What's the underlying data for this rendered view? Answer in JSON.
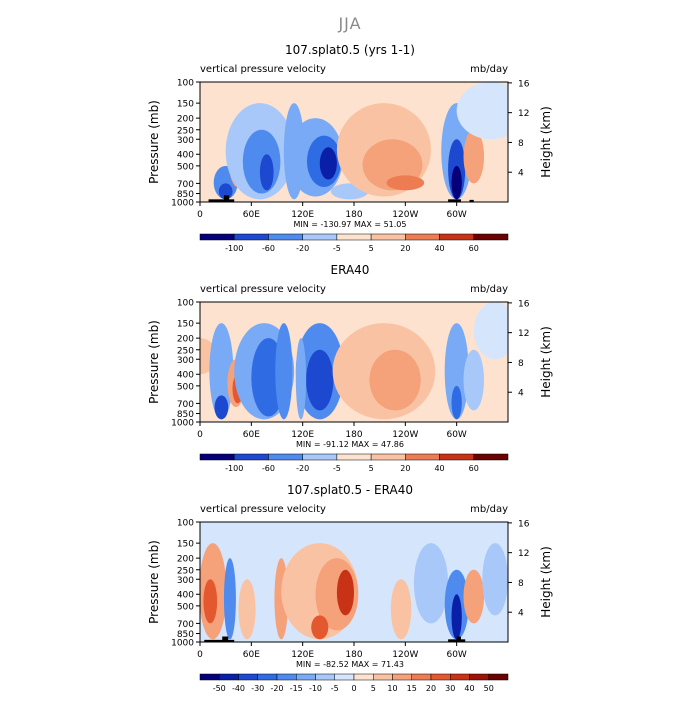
{
  "figure": {
    "season": "JJA"
  },
  "colors": {
    "m8": "#05007a",
    "m7": "#0a1fa8",
    "m6": "#1c49cf",
    "m5": "#2f6ce4",
    "m4": "#4f8bee",
    "m3": "#78aaf5",
    "m2": "#a7c8f9",
    "m1": "#d5e5fc",
    "p1": "#fde3cf",
    "p2": "#f9c3a3",
    "p3": "#f5a17a",
    "p4": "#ee7c52",
    "p5": "#e3582f",
    "p6": "#c83318",
    "p7": "#9c1408",
    "p8": "#6a0200",
    "land": "#000000"
  },
  "chart_data": [
    {
      "id": "panel-1",
      "type": "heatmap",
      "title": "107.splat0.5 (yrs 1-1)",
      "subtitle_left": "vertical pressure velocity",
      "subtitle_right": "mb/day",
      "ylabel": "Pressure (mb)",
      "ylabel_right": "Height (km)",
      "x_ticks": [
        "0",
        "60E",
        "120E",
        "180",
        "120W",
        "60W"
      ],
      "x_tick_values": [
        0,
        60,
        120,
        180,
        240,
        300
      ],
      "xlim": [
        0,
        360
      ],
      "y_ticks": [
        "100",
        "150",
        "200",
        "250",
        "300",
        "400",
        "500",
        "700",
        "850",
        "1000"
      ],
      "y_tick_values": [
        100,
        150,
        200,
        250,
        300,
        400,
        500,
        700,
        850,
        1000
      ],
      "ylim": [
        1000,
        100
      ],
      "height_ticks": [
        "16",
        "12",
        "8",
        "4"
      ],
      "height_tick_values": [
        16,
        12,
        8,
        4
      ],
      "minmax": "MIN = -130.97   MAX =  51.05",
      "colorbar_labels": [
        "-100",
        "-60",
        "-20",
        "-5",
        "5",
        "20",
        "40",
        "60"
      ],
      "bg": "p1",
      "blobs": [
        {
          "lon": 30,
          "lo": 500,
          "hi": 950,
          "w": 14,
          "c": "m4"
        },
        {
          "lon": 30,
          "lo": 700,
          "hi": 950,
          "w": 8,
          "c": "m6"
        },
        {
          "lon": 44,
          "lo": 300,
          "hi": 750,
          "w": 10,
          "c": "p3"
        },
        {
          "lon": 70,
          "lo": 150,
          "hi": 950,
          "w": 40,
          "c": "m2"
        },
        {
          "lon": 72,
          "lo": 250,
          "hi": 850,
          "w": 22,
          "c": "m4"
        },
        {
          "lon": 78,
          "lo": 400,
          "hi": 800,
          "w": 8,
          "c": "m6"
        },
        {
          "lon": 110,
          "lo": 150,
          "hi": 950,
          "w": 12,
          "c": "m3"
        },
        {
          "lon": 135,
          "lo": 200,
          "hi": 900,
          "w": 32,
          "c": "m3"
        },
        {
          "lon": 145,
          "lo": 280,
          "hi": 750,
          "w": 20,
          "c": "m5"
        },
        {
          "lon": 150,
          "lo": 350,
          "hi": 650,
          "w": 10,
          "c": "m7"
        },
        {
          "lon": 175,
          "lo": 700,
          "hi": 950,
          "w": 22,
          "c": "m2"
        },
        {
          "lon": 215,
          "lo": 150,
          "hi": 900,
          "w": 55,
          "c": "p2"
        },
        {
          "lon": 225,
          "lo": 300,
          "hi": 800,
          "w": 35,
          "c": "p3"
        },
        {
          "lon": 240,
          "lo": 600,
          "hi": 800,
          "w": 22,
          "c": "p4"
        },
        {
          "lon": 300,
          "lo": 150,
          "hi": 950,
          "w": 18,
          "c": "m3"
        },
        {
          "lon": 300,
          "lo": 300,
          "hi": 950,
          "w": 10,
          "c": "m6"
        },
        {
          "lon": 300,
          "lo": 500,
          "hi": 950,
          "w": 6,
          "c": "m8"
        },
        {
          "lon": 320,
          "lo": 250,
          "hi": 700,
          "w": 12,
          "c": "p3"
        },
        {
          "lon": 340,
          "lo": 100,
          "hi": 300,
          "w": 40,
          "c": "m1"
        }
      ],
      "land": [
        {
          "lon0": 10,
          "lon1": 40,
          "p0": 950,
          "p1": 1000
        },
        {
          "lon0": 28,
          "lon1": 34,
          "p0": 880,
          "p1": 1000
        },
        {
          "lon0": 290,
          "lon1": 305,
          "p0": 950,
          "p1": 1000
        },
        {
          "lon0": 315,
          "lon1": 320,
          "p0": 960,
          "p1": 1000
        }
      ]
    },
    {
      "id": "panel-2",
      "type": "heatmap",
      "title": "ERA40",
      "subtitle_left": "vertical pressure velocity",
      "subtitle_right": "mb/day",
      "ylabel": "Pressure (mb)",
      "ylabel_right": "Height (km)",
      "x_ticks": [
        "0",
        "60E",
        "120E",
        "180",
        "120W",
        "60W"
      ],
      "x_tick_values": [
        0,
        60,
        120,
        180,
        240,
        300
      ],
      "xlim": [
        0,
        360
      ],
      "y_ticks": [
        "100",
        "150",
        "200",
        "250",
        "300",
        "400",
        "500",
        "700",
        "850",
        "1000"
      ],
      "y_tick_values": [
        100,
        150,
        200,
        250,
        300,
        400,
        500,
        700,
        850,
        1000
      ],
      "ylim": [
        1000,
        100
      ],
      "height_ticks": [
        "16",
        "12",
        "8",
        "4"
      ],
      "height_tick_values": [
        16,
        12,
        8,
        4
      ],
      "minmax": "MIN = -91.12   MAX =  47.86",
      "colorbar_labels": [
        "-100",
        "-60",
        "-20",
        "-5",
        "5",
        "20",
        "40",
        "60"
      ],
      "bg": "p1",
      "blobs": [
        {
          "lon": 0,
          "lo": 200,
          "hi": 400,
          "w": 20,
          "c": "p2"
        },
        {
          "lon": 25,
          "lo": 150,
          "hi": 950,
          "w": 14,
          "c": "m3"
        },
        {
          "lon": 25,
          "lo": 600,
          "hi": 950,
          "w": 8,
          "c": "m6"
        },
        {
          "lon": 42,
          "lo": 300,
          "hi": 750,
          "w": 10,
          "c": "p3"
        },
        {
          "lon": 44,
          "lo": 400,
          "hi": 700,
          "w": 6,
          "c": "p5"
        },
        {
          "lon": 75,
          "lo": 150,
          "hi": 950,
          "w": 35,
          "c": "m3"
        },
        {
          "lon": 80,
          "lo": 200,
          "hi": 900,
          "w": 20,
          "c": "m5"
        },
        {
          "lon": 98,
          "lo": 150,
          "hi": 950,
          "w": 10,
          "c": "m4"
        },
        {
          "lon": 140,
          "lo": 150,
          "hi": 950,
          "w": 28,
          "c": "m4"
        },
        {
          "lon": 140,
          "lo": 250,
          "hi": 800,
          "w": 16,
          "c": "m6"
        },
        {
          "lon": 118,
          "lo": 200,
          "hi": 950,
          "w": 6,
          "c": "m3"
        },
        {
          "lon": 215,
          "lo": 150,
          "hi": 950,
          "w": 60,
          "c": "p2"
        },
        {
          "lon": 228,
          "lo": 250,
          "hi": 800,
          "w": 30,
          "c": "p3"
        },
        {
          "lon": 300,
          "lo": 150,
          "hi": 950,
          "w": 14,
          "c": "m3"
        },
        {
          "lon": 300,
          "lo": 500,
          "hi": 950,
          "w": 6,
          "c": "m5"
        },
        {
          "lon": 320,
          "lo": 250,
          "hi": 800,
          "w": 12,
          "c": "m2"
        },
        {
          "lon": 345,
          "lo": 100,
          "hi": 300,
          "w": 25,
          "c": "m1"
        }
      ],
      "land": []
    },
    {
      "id": "panel-3",
      "type": "heatmap",
      "title": "107.splat0.5 - ERA40",
      "subtitle_left": "vertical pressure velocity",
      "subtitle_right": "mb/day",
      "ylabel": "Pressure (mb)",
      "ylabel_right": "Height (km)",
      "x_ticks": [
        "0",
        "60E",
        "120E",
        "180",
        "120W",
        "60W"
      ],
      "x_tick_values": [
        0,
        60,
        120,
        180,
        240,
        300
      ],
      "xlim": [
        0,
        360
      ],
      "y_ticks": [
        "100",
        "150",
        "200",
        "250",
        "300",
        "400",
        "500",
        "700",
        "850",
        "1000"
      ],
      "y_tick_values": [
        100,
        150,
        200,
        250,
        300,
        400,
        500,
        700,
        850,
        1000
      ],
      "ylim": [
        1000,
        100
      ],
      "height_ticks": [
        "16",
        "12",
        "8",
        "4"
      ],
      "height_tick_values": [
        16,
        12,
        8,
        4
      ],
      "minmax": "MIN = -82.52   MAX =  71.43",
      "colorbar_labels": [
        "-50",
        "-40",
        "-30",
        "-20",
        "-15",
        "-10",
        "-5",
        "0",
        "5",
        "10",
        "15",
        "20",
        "30",
        "40",
        "50"
      ],
      "bg": "m1",
      "blobs": [
        {
          "lon": 15,
          "lo": 150,
          "hi": 950,
          "w": 16,
          "c": "p3"
        },
        {
          "lon": 12,
          "lo": 300,
          "hi": 700,
          "w": 8,
          "c": "p5"
        },
        {
          "lon": 35,
          "lo": 200,
          "hi": 950,
          "w": 7,
          "c": "m4"
        },
        {
          "lon": 55,
          "lo": 300,
          "hi": 950,
          "w": 10,
          "c": "p2"
        },
        {
          "lon": 95,
          "lo": 200,
          "hi": 950,
          "w": 8,
          "c": "p3"
        },
        {
          "lon": 140,
          "lo": 150,
          "hi": 950,
          "w": 45,
          "c": "p2"
        },
        {
          "lon": 160,
          "lo": 200,
          "hi": 800,
          "w": 25,
          "c": "p3"
        },
        {
          "lon": 170,
          "lo": 250,
          "hi": 600,
          "w": 10,
          "c": "p6"
        },
        {
          "lon": 140,
          "lo": 600,
          "hi": 950,
          "w": 10,
          "c": "p5"
        },
        {
          "lon": 235,
          "lo": 300,
          "hi": 950,
          "w": 12,
          "c": "p2"
        },
        {
          "lon": 270,
          "lo": 150,
          "hi": 700,
          "w": 20,
          "c": "m2"
        },
        {
          "lon": 300,
          "lo": 250,
          "hi": 950,
          "w": 14,
          "c": "m4"
        },
        {
          "lon": 300,
          "lo": 400,
          "hi": 950,
          "w": 6,
          "c": "m7"
        },
        {
          "lon": 320,
          "lo": 250,
          "hi": 700,
          "w": 12,
          "c": "p3"
        },
        {
          "lon": 345,
          "lo": 150,
          "hi": 600,
          "w": 15,
          "c": "m2"
        }
      ],
      "land": [
        {
          "lon0": 5,
          "lon1": 40,
          "p0": 960,
          "p1": 1000
        },
        {
          "lon0": 26,
          "lon1": 33,
          "p0": 900,
          "p1": 1000
        },
        {
          "lon0": 290,
          "lon1": 310,
          "p0": 950,
          "p1": 1000
        },
        {
          "lon0": 300,
          "lon1": 305,
          "p0": 900,
          "p1": 1000
        }
      ]
    }
  ]
}
